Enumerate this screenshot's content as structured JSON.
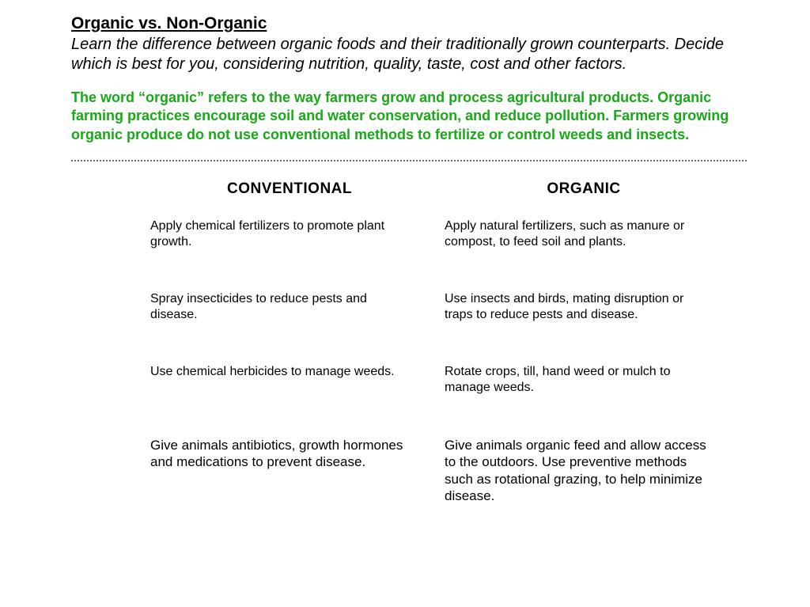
{
  "colors": {
    "text": "#000000",
    "definition": "#18a818",
    "divider": "#6b6b6b",
    "background": "#ffffff"
  },
  "header": {
    "title": "Organic vs. Non-Organic",
    "subtitle": "Learn the difference between organic foods and their traditionally grown counterparts. Decide which is best for you, considering nutrition, quality, taste, cost and other factors.",
    "definition": "The word “organic” refers to the way farmers grow and process agricultural products.  Organic farming practices encourage soil and water conservation, and reduce pollution.  Farmers growing organic produce do not use conventional methods to fertilize or control weeds and insects."
  },
  "comparison": {
    "type": "table",
    "columns": [
      "CONVENTIONAL",
      "ORGANIC"
    ],
    "rows": [
      {
        "conventional": "Apply chemical fertilizers to promote plant growth.",
        "organic": "Apply natural fertilizers, such as manure or compost, to feed soil and plants."
      },
      {
        "conventional": "Spray insecticides to reduce pests and disease.",
        "organic": "Use insects and birds, mating disruption or traps to reduce pests and disease."
      },
      {
        "conventional": "Use chemical herbicides to manage weeds.",
        "organic": "Rotate crops, till, hand weed or mulch to manage weeds."
      },
      {
        "conventional": "Give animals antibiotics, growth hormones and medications to prevent disease.",
        "organic": "Give animals organic feed and allow access to the outdoors. Use preventive methods such as rotational grazing, to help minimize disease."
      }
    ]
  }
}
